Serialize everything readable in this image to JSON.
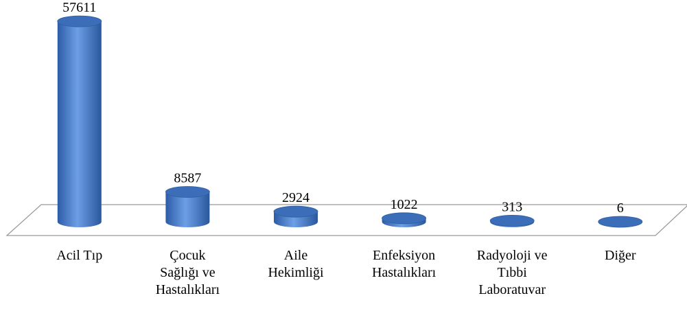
{
  "chart_data": {
    "type": "bar3d",
    "categories": [
      "Acil Tıp",
      "Çocuk\nSağlığı ve\nHastalıkları",
      "Aile\nHekimliği",
      "Enfeksiyon\nHastalıkları",
      "Radyoloji ve\nTıbbi\nLaboratuvar",
      "Diğer"
    ],
    "values": [
      57611,
      8587,
      2924,
      1022,
      313,
      6
    ],
    "color": "#4a7fce",
    "ylim": [
      0,
      60000
    ]
  }
}
